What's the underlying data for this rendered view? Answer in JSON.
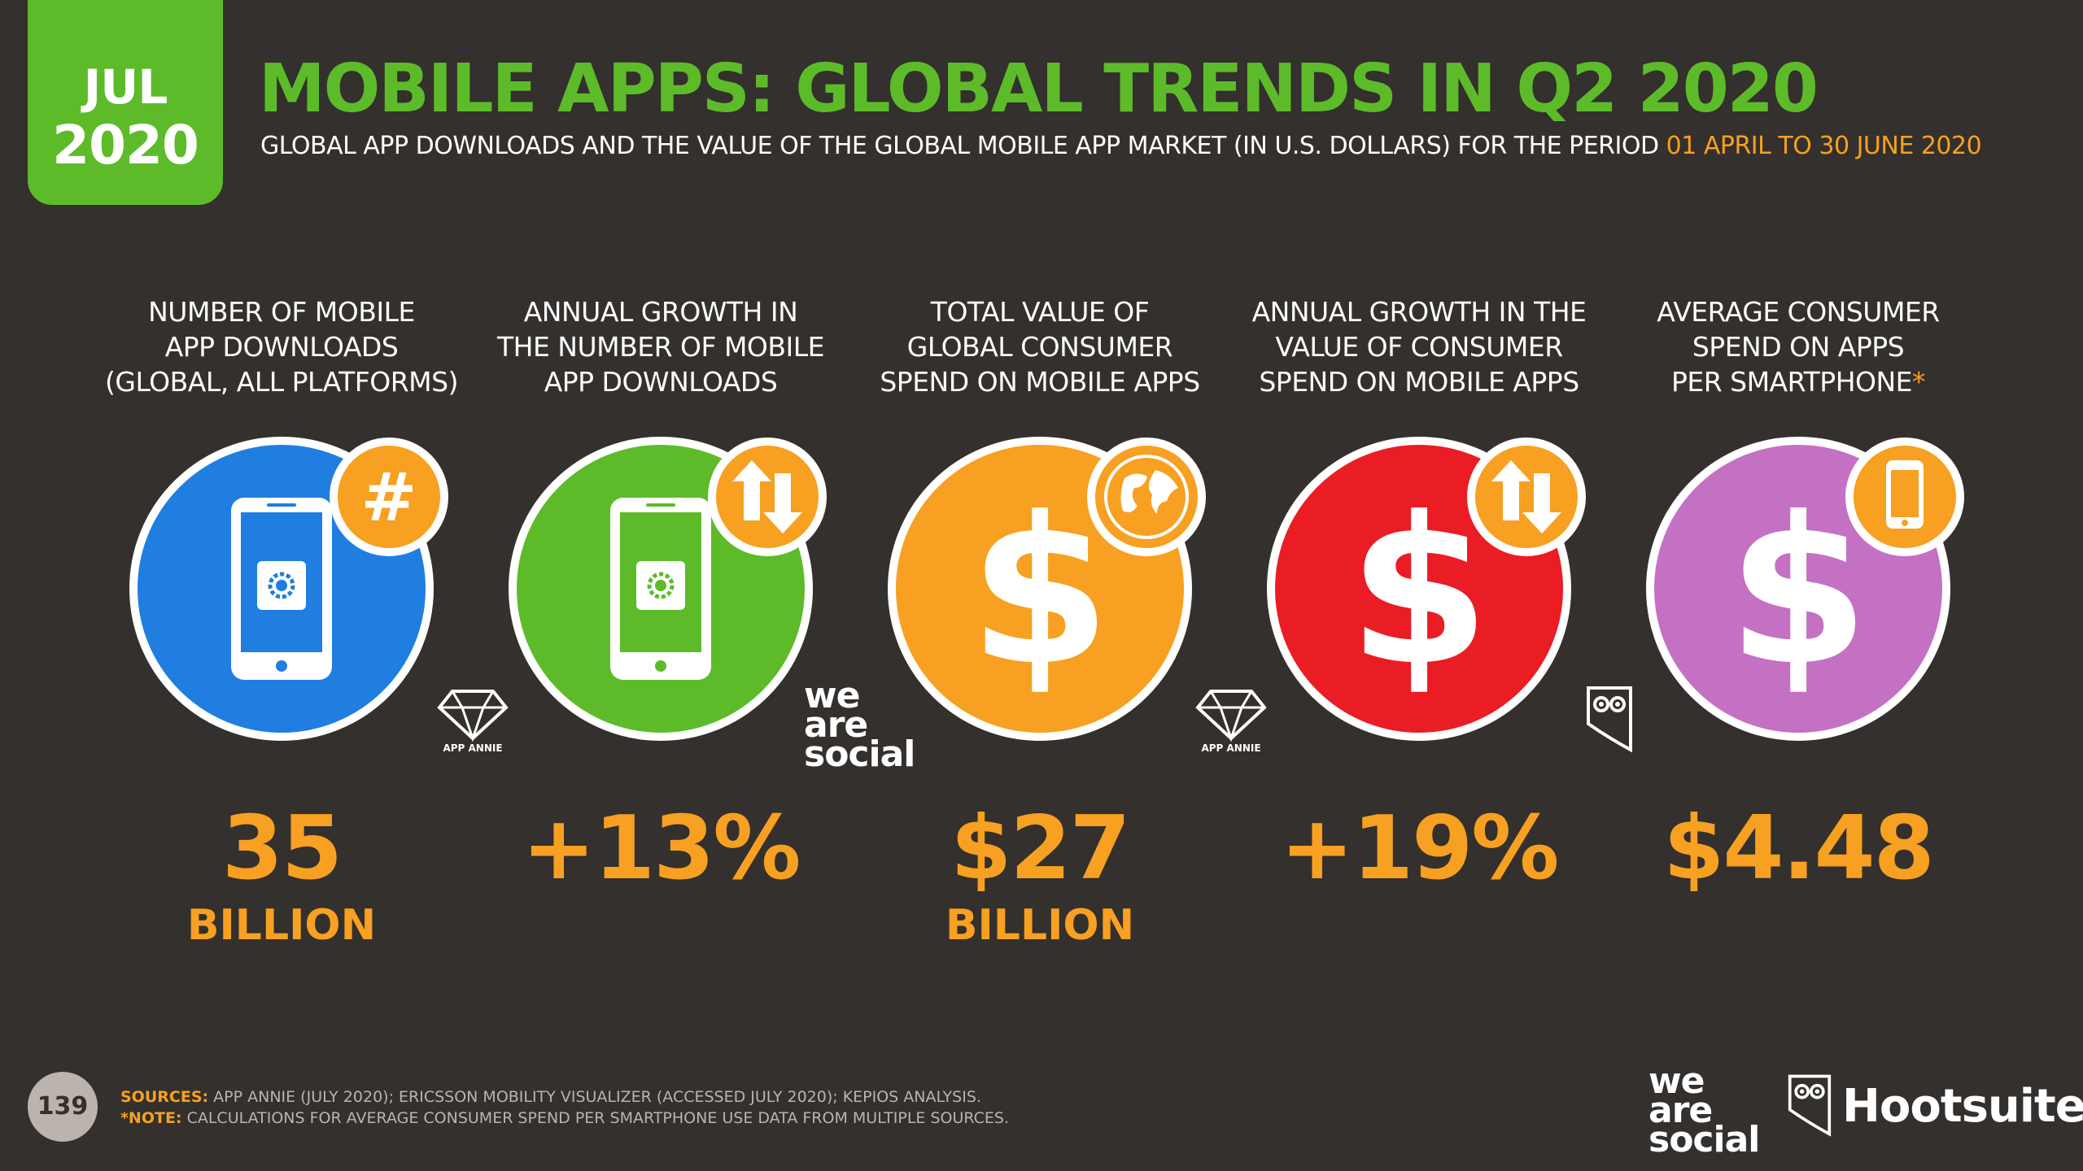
{
  "header": {
    "date_month": "JUL",
    "date_year": "2020",
    "title": "MOBILE APPS: GLOBAL TRENDS IN Q2 2020",
    "subtitle": "GLOBAL APP DOWNLOADS AND THE VALUE OF THE GLOBAL MOBILE APP MARKET (IN U.S. DOLLARS) FOR THE PERIOD",
    "subtitle_period": "01 APRIL TO 30 JUNE 2020"
  },
  "stats": [
    {
      "label_lines": [
        "NUMBER OF MOBILE",
        "APP DOWNLOADS",
        "(GLOBAL, ALL PLATFORMS)"
      ],
      "value": "35",
      "unit": "BILLION",
      "circle_color": "#1f7ee0",
      "main_icon": "smartphone-app-icon",
      "badge_icon": "hashtag-icon",
      "source": "APP ANNIE"
    },
    {
      "label_lines": [
        "ANNUAL GROWTH IN",
        "THE NUMBER OF MOBILE",
        "APP DOWNLOADS"
      ],
      "value": "+13%",
      "unit": "",
      "circle_color": "#5dbb2a",
      "main_icon": "smartphone-app-icon",
      "badge_icon": "up-down-arrows-icon",
      "source": "we are social"
    },
    {
      "label_lines": [
        "TOTAL VALUE OF",
        "GLOBAL CONSUMER",
        "SPEND ON MOBILE APPS"
      ],
      "value": "$27",
      "unit": "BILLION",
      "circle_color": "#f7a021",
      "main_icon": "dollar-icon",
      "badge_icon": "globe-icon",
      "source": "APP ANNIE"
    },
    {
      "label_lines": [
        "ANNUAL GROWTH IN THE",
        "VALUE OF CONSUMER",
        "SPEND ON MOBILE APPS"
      ],
      "value": "+19%",
      "unit": "",
      "circle_color": "#ea1c24",
      "main_icon": "dollar-icon",
      "badge_icon": "up-down-arrows-icon",
      "source": "hootsuite-owl"
    },
    {
      "label_lines": [
        "AVERAGE CONSUMER",
        "SPEND ON APPS",
        "PER SMARTPHONE"
      ],
      "label_asterisk": "*",
      "value": "$4.48",
      "unit": "",
      "circle_color": "#c471c4",
      "main_icon": "dollar-icon",
      "badge_icon": "smartphone-icon",
      "source": ""
    }
  ],
  "footer": {
    "page_number": "139",
    "sources_label": "SOURCES:",
    "sources_text": "APP ANNIE (JULY 2020); ERICSSON MOBILITY VISUALIZER (ACCESSED JULY 2020); KEPIOS ANALYSIS.",
    "note_label": "*NOTE:",
    "note_text": "CALCULATIONS FOR AVERAGE CONSUMER SPEND PER SMARTPHONE USE DATA FROM MULTIPLE SOURCES.",
    "logo_was": [
      "we",
      "are",
      "social"
    ],
    "logo_hootsuite": "Hootsuite",
    "trademark": "®"
  },
  "logos": {
    "app_annie": "APP ANNIE",
    "was_lines": [
      "we",
      "are",
      "social"
    ]
  },
  "colors": {
    "background": "#33302d",
    "accent_green": "#5dbb2a",
    "accent_orange": "#f7a021"
  }
}
